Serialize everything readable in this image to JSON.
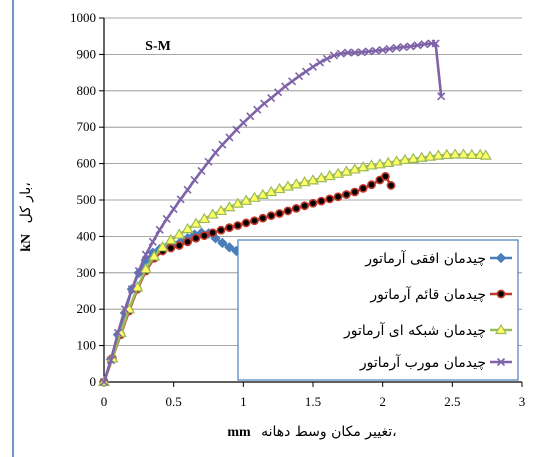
{
  "chart_data": {
    "type": "line",
    "annotation": "S-M",
    "xlabel": "تغییر مکان وسط دهانه،",
    "xlabel_unit": "mm",
    "ylabel": "بار کل،",
    "ylabel_unit": "kN",
    "xlim": [
      0,
      3
    ],
    "ylim": [
      0,
      1000
    ],
    "x_ticks": [
      "0",
      "0.5",
      "1",
      "1.5",
      "2",
      "2.5",
      "3"
    ],
    "y_ticks": [
      "0",
      "100",
      "200",
      "300",
      "400",
      "500",
      "600",
      "700",
      "800",
      "900",
      "1000"
    ],
    "grid": true,
    "legend_position": "bottom-right",
    "series": [
      {
        "name": "چیدمان افقی آرماتور",
        "color": "#4a7ebb",
        "marker": "diamond",
        "points": [
          [
            0,
            0
          ],
          [
            0.05,
            62
          ],
          [
            0.1,
            130
          ],
          [
            0.15,
            190
          ],
          [
            0.2,
            255
          ],
          [
            0.25,
            300
          ],
          [
            0.3,
            335
          ],
          [
            0.35,
            355
          ],
          [
            0.4,
            365
          ],
          [
            0.45,
            372
          ],
          [
            0.5,
            378
          ],
          [
            0.55,
            385
          ],
          [
            0.6,
            395
          ],
          [
            0.65,
            405
          ],
          [
            0.7,
            410
          ],
          [
            0.75,
            408
          ],
          [
            0.8,
            395
          ],
          [
            0.85,
            382
          ],
          [
            0.9,
            370
          ],
          [
            0.95,
            360
          ],
          [
            1.0,
            352
          ]
        ]
      },
      {
        "name": "چیدمان قائم آرماتور",
        "color": "#c0392b",
        "marker": "circle",
        "points": [
          [
            0,
            0
          ],
          [
            0.06,
            65
          ],
          [
            0.12,
            130
          ],
          [
            0.18,
            195
          ],
          [
            0.24,
            255
          ],
          [
            0.3,
            305
          ],
          [
            0.36,
            340
          ],
          [
            0.42,
            360
          ],
          [
            0.48,
            368
          ],
          [
            0.54,
            375
          ],
          [
            0.6,
            385
          ],
          [
            0.66,
            395
          ],
          [
            0.72,
            402
          ],
          [
            0.78,
            410
          ],
          [
            0.84,
            417
          ],
          [
            0.9,
            424
          ],
          [
            0.96,
            430
          ],
          [
            1.02,
            437
          ],
          [
            1.08,
            443
          ],
          [
            1.14,
            450
          ],
          [
            1.2,
            457
          ],
          [
            1.26,
            463
          ],
          [
            1.32,
            470
          ],
          [
            1.38,
            477
          ],
          [
            1.44,
            484
          ],
          [
            1.5,
            491
          ],
          [
            1.56,
            497
          ],
          [
            1.62,
            503
          ],
          [
            1.68,
            509
          ],
          [
            1.74,
            515
          ],
          [
            1.8,
            522
          ],
          [
            1.86,
            532
          ],
          [
            1.92,
            542
          ],
          [
            1.98,
            555
          ],
          [
            2.02,
            565
          ],
          [
            2.06,
            540
          ]
        ]
      },
      {
        "name": "چیدمان شبکه ای آرماتور",
        "color": "#9bbb59",
        "marker": "triangle",
        "points": [
          [
            0,
            0
          ],
          [
            0.06,
            65
          ],
          [
            0.12,
            135
          ],
          [
            0.18,
            200
          ],
          [
            0.24,
            260
          ],
          [
            0.3,
            310
          ],
          [
            0.36,
            345
          ],
          [
            0.42,
            370
          ],
          [
            0.48,
            390
          ],
          [
            0.54,
            405
          ],
          [
            0.6,
            420
          ],
          [
            0.66,
            435
          ],
          [
            0.72,
            448
          ],
          [
            0.78,
            460
          ],
          [
            0.84,
            470
          ],
          [
            0.9,
            480
          ],
          [
            0.96,
            490
          ],
          [
            1.02,
            498
          ],
          [
            1.08,
            506
          ],
          [
            1.14,
            514
          ],
          [
            1.2,
            522
          ],
          [
            1.26,
            530
          ],
          [
            1.32,
            537
          ],
          [
            1.38,
            543
          ],
          [
            1.44,
            549
          ],
          [
            1.5,
            554
          ],
          [
            1.56,
            560
          ],
          [
            1.62,
            566
          ],
          [
            1.68,
            572
          ],
          [
            1.74,
            578
          ],
          [
            1.8,
            584
          ],
          [
            1.86,
            590
          ],
          [
            1.92,
            595
          ],
          [
            1.98,
            598
          ],
          [
            2.04,
            602
          ],
          [
            2.1,
            606
          ],
          [
            2.16,
            610
          ],
          [
            2.22,
            613
          ],
          [
            2.28,
            616
          ],
          [
            2.34,
            619
          ],
          [
            2.4,
            622
          ],
          [
            2.46,
            624
          ],
          [
            2.52,
            625
          ],
          [
            2.58,
            625
          ],
          [
            2.64,
            624
          ],
          [
            2.7,
            624
          ],
          [
            2.74,
            622
          ]
        ]
      },
      {
        "name": "چیدمان مورب آرماتور",
        "color": "#7f63a8",
        "marker": "x",
        "points": [
          [
            0,
            0
          ],
          [
            0.05,
            60
          ],
          [
            0.1,
            135
          ],
          [
            0.15,
            200
          ],
          [
            0.2,
            255
          ],
          [
            0.25,
            305
          ],
          [
            0.3,
            350
          ],
          [
            0.35,
            385
          ],
          [
            0.4,
            418
          ],
          [
            0.45,
            448
          ],
          [
            0.5,
            475
          ],
          [
            0.55,
            502
          ],
          [
            0.6,
            528
          ],
          [
            0.65,
            555
          ],
          [
            0.7,
            580
          ],
          [
            0.75,
            605
          ],
          [
            0.8,
            630
          ],
          [
            0.85,
            652
          ],
          [
            0.9,
            672
          ],
          [
            0.95,
            693
          ],
          [
            1.0,
            712
          ],
          [
            1.05,
            730
          ],
          [
            1.1,
            748
          ],
          [
            1.15,
            765
          ],
          [
            1.2,
            780
          ],
          [
            1.25,
            796
          ],
          [
            1.3,
            812
          ],
          [
            1.35,
            826
          ],
          [
            1.4,
            840
          ],
          [
            1.45,
            853
          ],
          [
            1.5,
            866
          ],
          [
            1.55,
            878
          ],
          [
            1.6,
            888
          ],
          [
            1.65,
            897
          ],
          [
            1.7,
            902
          ],
          [
            1.75,
            905
          ],
          [
            1.8,
            905
          ],
          [
            1.85,
            906
          ],
          [
            1.9,
            908
          ],
          [
            1.95,
            910
          ],
          [
            2.0,
            912
          ],
          [
            2.05,
            915
          ],
          [
            2.1,
            918
          ],
          [
            2.15,
            920
          ],
          [
            2.2,
            922
          ],
          [
            2.25,
            925
          ],
          [
            2.3,
            928
          ],
          [
            2.35,
            930
          ],
          [
            2.38,
            930
          ],
          [
            2.42,
            785
          ]
        ]
      }
    ]
  }
}
